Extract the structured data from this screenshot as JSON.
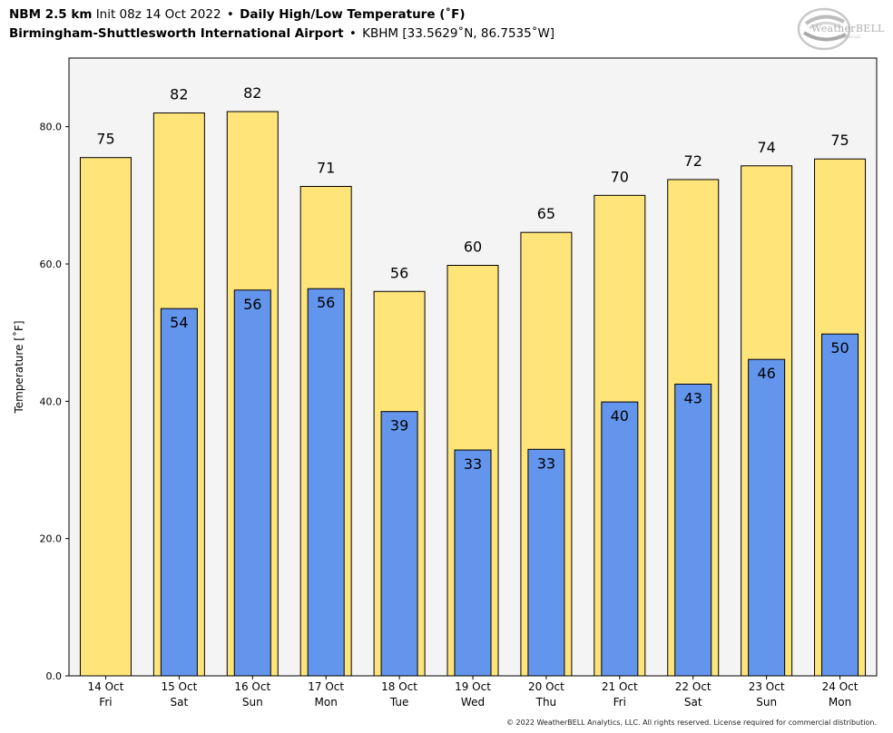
{
  "header": {
    "line1_model": "NBM 2.5 km",
    "line1_init": "Init 08z 14 Oct 2022",
    "line1_sep": "•",
    "line1_title": "Daily High/Low Temperature (˚F)",
    "line2_station": "Birmingham-Shuttlesworth International Airport",
    "line2_sep": "•",
    "line2_id": "KBHM [33.5629˚N, 86.7535˚W]"
  },
  "logo": {
    "text": "WeatherBELL",
    "subtext": "Analytics LLC",
    "icon": "weatherbell-swirl-logo"
  },
  "footer": {
    "copyright": "© 2022 WeatherBELL Analytics, LLC. All rights reserved. License required for commercial distribution."
  },
  "colors": {
    "high_bar": "#FFE47A",
    "low_bar": "#6495ED",
    "plot_bg": "#F4F4F4",
    "axis": "#000000"
  },
  "chart_data": {
    "type": "bar",
    "ylabel": "Temperature [˚F]",
    "xlabel": "",
    "ylim": [
      0,
      90
    ],
    "yticks": [
      "0.0",
      "20.0",
      "40.0",
      "60.0",
      "80.0"
    ],
    "grid": false,
    "categories": [
      [
        "14 Oct",
        "Fri"
      ],
      [
        "15 Oct",
        "Sat"
      ],
      [
        "16 Oct",
        "Sun"
      ],
      [
        "17 Oct",
        "Mon"
      ],
      [
        "18 Oct",
        "Tue"
      ],
      [
        "19 Oct",
        "Wed"
      ],
      [
        "20 Oct",
        "Thu"
      ],
      [
        "21 Oct",
        "Fri"
      ],
      [
        "22 Oct",
        "Sat"
      ],
      [
        "23 Oct",
        "Sun"
      ],
      [
        "24 Oct",
        "Mon"
      ]
    ],
    "series": [
      {
        "key": "high",
        "values": [
          75.5,
          82,
          82.2,
          71.3,
          56,
          59.8,
          64.6,
          70,
          72.3,
          74.3,
          75.3
        ],
        "labels": [
          "75",
          "82",
          "82",
          "71",
          "56",
          "60",
          "65",
          "70",
          "72",
          "74",
          "75"
        ]
      },
      {
        "key": "low",
        "values": [
          null,
          53.5,
          56.2,
          56.4,
          38.5,
          32.9,
          33,
          39.9,
          42.5,
          46.1,
          49.8
        ],
        "labels": [
          "",
          "54",
          "56",
          "56",
          "39",
          "33",
          "33",
          "40",
          "43",
          "46",
          "50"
        ]
      }
    ]
  }
}
